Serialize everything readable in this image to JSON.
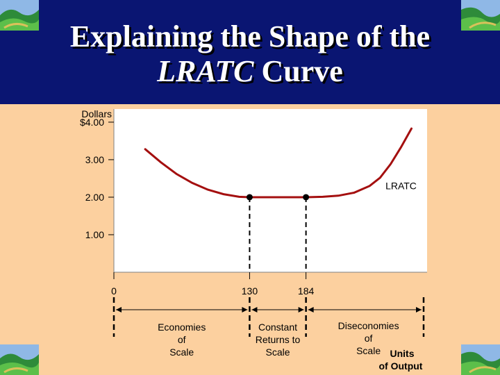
{
  "slide": {
    "title_line1": "Explaining the Shape of the",
    "title_line2_italic": "LRATC",
    "title_line2_rest": " Curve",
    "colors": {
      "background": "#fcd09f",
      "title_band": "#0a1572",
      "curve": "#a40f0f"
    }
  },
  "chart_data": {
    "type": "line",
    "ylabel": "Dollars",
    "xlabel": "Units of Output",
    "xlabel_lines": [
      "Units",
      "of Output"
    ],
    "y_ticks": [
      {
        "value": 4,
        "label": "$4.00"
      },
      {
        "value": 3,
        "label": "3.00"
      },
      {
        "value": 2,
        "label": "2.00"
      },
      {
        "value": 1,
        "label": "1.00"
      }
    ],
    "x_ticks": [
      {
        "value": 0,
        "label": "0"
      },
      {
        "value": 130,
        "label": "130"
      },
      {
        "value": 184,
        "label": "184"
      }
    ],
    "ylim": [
      0,
      4.35
    ],
    "xlim": [
      0,
      300
    ],
    "series": [
      {
        "name": "LRATC",
        "x": [
          30,
          45,
          60,
          75,
          90,
          105,
          120,
          130,
          150,
          170,
          184,
          200,
          215,
          230,
          245,
          255,
          265,
          275,
          285
        ],
        "y": [
          3.28,
          2.93,
          2.62,
          2.38,
          2.2,
          2.08,
          2.01,
          2.0,
          2.0,
          2.0,
          2.0,
          2.01,
          2.04,
          2.12,
          2.3,
          2.52,
          2.88,
          3.33,
          3.83
        ]
      }
    ],
    "points": [
      {
        "x": 130,
        "y": 2.0
      },
      {
        "x": 184,
        "y": 2.0
      }
    ],
    "annotations": [
      {
        "text": "LRATC",
        "x": 280,
        "y": 2.3
      }
    ],
    "regions": [
      {
        "lines": [
          "Economies",
          "of",
          "Scale"
        ],
        "from": 0,
        "to": 130
      },
      {
        "lines": [
          "Constant",
          "Returns to",
          "Scale"
        ],
        "from": 130,
        "to": 184
      },
      {
        "lines": [
          "Diseconomies",
          "of",
          "Scale"
        ],
        "from": 184,
        "to": 300
      }
    ]
  }
}
